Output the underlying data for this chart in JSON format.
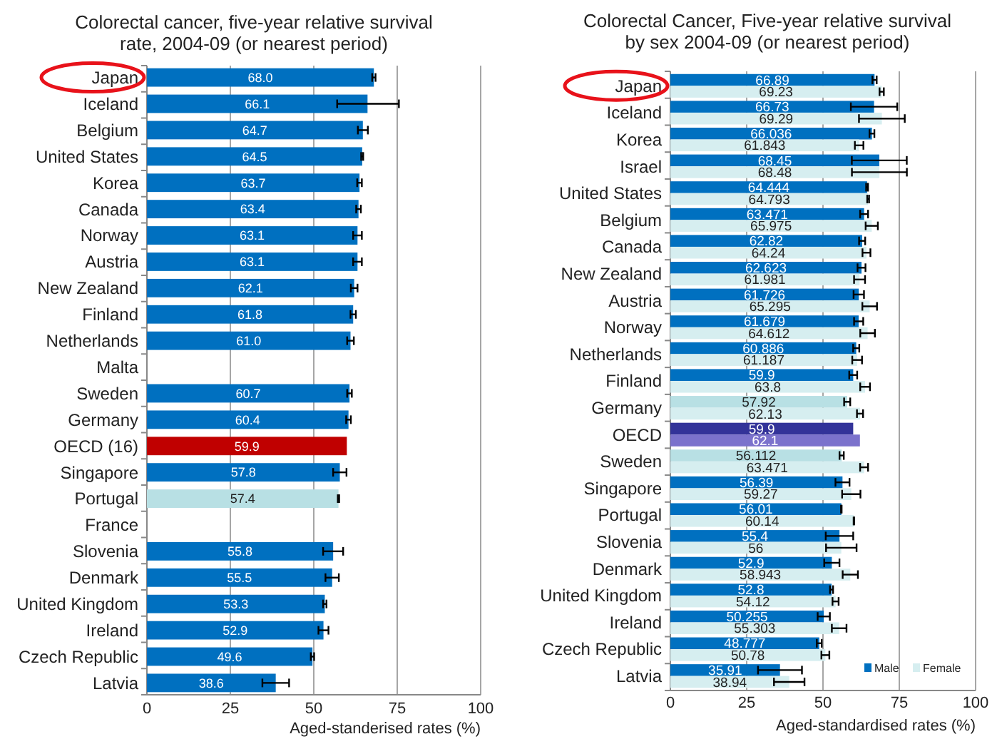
{
  "chart_data": [
    {
      "type": "bar",
      "orientation": "horizontal",
      "title": "Colorectal cancer, five-year relative survival\nrate, 2004-09 (or nearest period)",
      "xlabel": "Aged-standerised rates (%)",
      "categories": [
        "Japan",
        "Iceland",
        "Belgium",
        "United States",
        "Korea",
        "Canada",
        "Norway",
        "Austria",
        "New Zealand",
        "Finland",
        "Netherlands",
        "Malta",
        "Sweden",
        "Germany",
        "OECD (16)",
        "Singapore",
        "Portugal",
        "France",
        "Slovenia",
        "Denmark",
        "United Kingdom",
        "Ireland",
        "Czech Republic",
        "Latvia"
      ],
      "series": [
        {
          "values": [
            68.0,
            66.1,
            64.7,
            64.5,
            63.7,
            63.4,
            63.1,
            63.1,
            62.1,
            61.8,
            61.0,
            null,
            60.7,
            60.4,
            59.9,
            57.8,
            57.4,
            null,
            55.8,
            55.5,
            53.3,
            52.9,
            49.6,
            38.6
          ],
          "colors": [
            "#0070c0",
            "#0070c0",
            "#0070c0",
            "#0070c0",
            "#0070c0",
            "#0070c0",
            "#0070c0",
            "#0070c0",
            "#0070c0",
            "#0070c0",
            "#0070c0",
            null,
            "#0070c0",
            "#0070c0",
            "#c00000",
            "#0070c0",
            "#b8e0e4",
            null,
            "#0070c0",
            "#0070c0",
            "#0070c0",
            "#0070c0",
            "#0070c0",
            "#0070c0"
          ],
          "errors": [
            0.5,
            [
              57,
              75.5
            ],
            1.5,
            0.3,
            0.7,
            0.7,
            1.3,
            1.3,
            1,
            0.8,
            1,
            null,
            0.7,
            0.7,
            null,
            2,
            0.2,
            null,
            3,
            2,
            0.5,
            1.5,
            0.5,
            4
          ],
          "value_labels": [
            "68.0",
            "66.1",
            "64.7",
            "64.5",
            "63.7",
            "63.4",
            "63.1",
            "63.1",
            "62.1",
            "61.8",
            "61.0",
            null,
            "60.7",
            "60.4",
            "59.9",
            "57.8",
            "57.4",
            null,
            "55.8",
            "55.5",
            "53.3",
            "52.9",
            "49.6",
            "38.6"
          ]
        }
      ],
      "xlim": [
        0,
        100
      ],
      "xticks": [
        0,
        25,
        50,
        75,
        100
      ],
      "grid": "x"
    },
    {
      "type": "bar",
      "orientation": "horizontal",
      "title": "Colorectal Cancer, Five-year relative survival\nby sex 2004-09 (or nearest period)",
      "xlabel": "Aged-standardised rates (%)",
      "categories": [
        "Japan",
        "Iceland",
        "Korea",
        "Israel",
        "United States",
        "Belgium",
        "Canada",
        "New Zealand",
        "Austria",
        "Norway",
        "Netherlands",
        "Finland",
        "Germany",
        "OECD",
        "Sweden",
        "Singapore",
        "Portugal",
        "Slovenia",
        "Denmark",
        "United Kingdom",
        "Ireland",
        "Czech Republic",
        "Latvia"
      ],
      "series": [
        {
          "name": "Male",
          "color": "#0070c0",
          "values": [
            66.89,
            66.73,
            66.036,
            68.45,
            64.444,
            63.471,
            62.82,
            62.623,
            61.726,
            61.679,
            60.886,
            59.9,
            57.92,
            59.9,
            56.112,
            56.39,
            56.01,
            55.4,
            52.9,
            52.8,
            50.255,
            48.777,
            35.91
          ],
          "colors": [
            "#0070c0",
            "#0070c0",
            "#0070c0",
            "#0070c0",
            "#0070c0",
            "#0070c0",
            "#0070c0",
            "#0070c0",
            "#0070c0",
            "#0070c0",
            "#0070c0",
            "#0070c0",
            "#b8e0e4",
            "#333399",
            "#b8e0e4",
            "#0070c0",
            "#0070c0",
            "#0070c0",
            "#0070c0",
            "#0070c0",
            "#0070c0",
            "#0070c0",
            "#0070c0"
          ],
          "errors": [
            0.7,
            7.6,
            0.8,
            9,
            0.3,
            1.3,
            1,
            1.3,
            1.7,
            1.5,
            1,
            1.3,
            1,
            null,
            0.7,
            2.3,
            0.1,
            4.5,
            2.5,
            0.5,
            2,
            0.8,
            7.2
          ],
          "value_labels": [
            "66.89",
            "66.73",
            "66.036",
            "68.45",
            "64.444",
            "63.471",
            "62.82",
            "62.623",
            "61.726",
            "61.679",
            "60.886",
            "59.9",
            "57.92",
            "59.9",
            "56.112",
            "56.39",
            "56.01",
            "55.4",
            "52.9",
            "52.8",
            "50.255",
            "48.777",
            "35.91"
          ]
        },
        {
          "name": "Female",
          "color": "#d6eef0",
          "values": [
            69.23,
            69.29,
            61.843,
            68.48,
            64.793,
            65.975,
            64.24,
            61.981,
            65.295,
            64.612,
            61.187,
            63.8,
            62.13,
            62.1,
            63.471,
            59.27,
            60.14,
            56,
            58.943,
            54.12,
            55.303,
            50.78,
            38.94
          ],
          "colors": [
            "#d6eef0",
            "#d6eef0",
            "#d6eef0",
            "#d6eef0",
            "#d6eef0",
            "#d6eef0",
            "#d6eef0",
            "#d6eef0",
            "#d6eef0",
            "#d6eef0",
            "#d6eef0",
            "#d6eef0",
            "#d6eef0",
            "#7b72cc",
            "#d6eef0",
            "#d6eef0",
            "#d6eef0",
            "#d6eef0",
            "#d6eef0",
            "#d6eef0",
            "#d6eef0",
            "#d6eef0",
            "#d6eef0"
          ],
          "errors": [
            0.7,
            7.5,
            1.4,
            9,
            0.3,
            2,
            1.3,
            1.8,
            2.4,
            2.4,
            1.6,
            1.6,
            1,
            null,
            1.3,
            3,
            0.1,
            5,
            2.5,
            1,
            2.4,
            1.3,
            5
          ],
          "value_labels": [
            "69.23",
            "69.29",
            "61.843",
            "68.48",
            "64.793",
            "65.975",
            "64.24",
            "61.981",
            "65.295",
            "64.612",
            "61.187",
            "63.8",
            "62.13",
            "62.1",
            "63.471",
            "59.27",
            "60.14",
            "56",
            "58.943",
            "54.12",
            "55.303",
            "50.78",
            "38.94"
          ]
        }
      ],
      "xlim": [
        0,
        100
      ],
      "xticks": [
        0,
        25,
        50,
        75,
        100
      ],
      "grid": "x",
      "legend": "bottom right"
    }
  ]
}
